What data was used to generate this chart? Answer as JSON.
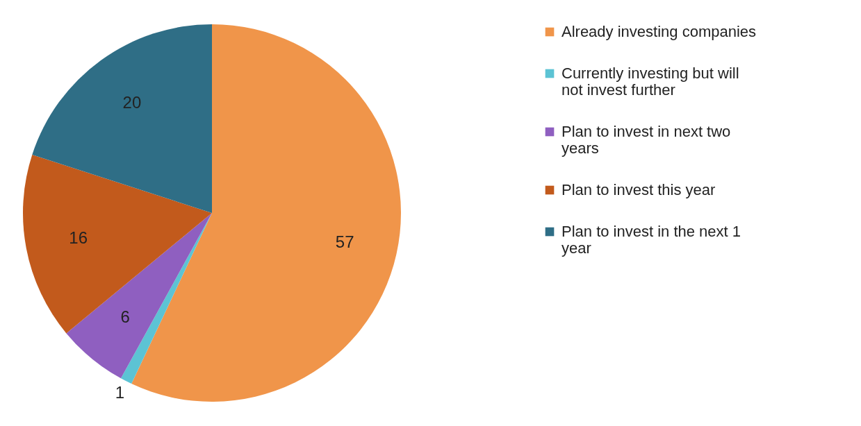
{
  "chart_data": {
    "type": "pie",
    "categories": [
      "Already investing companies",
      "Currently investing but will not invest further",
      "Plan to invest in next two years",
      "Plan to invest this year",
      "Plan to invest in the next 1 year"
    ],
    "values": [
      57,
      1,
      6,
      16,
      20
    ],
    "colors": [
      "#f0954a",
      "#5cc3d4",
      "#8f5fc0",
      "#c25a1c",
      "#2f6e86"
    ],
    "data_labels": true,
    "legend": "right"
  }
}
